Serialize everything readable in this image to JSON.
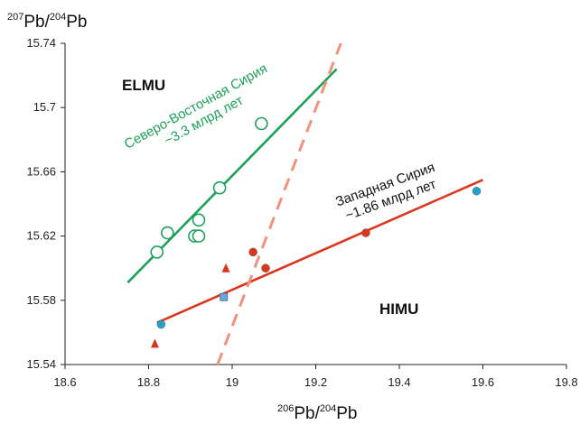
{
  "chart_data": {
    "type": "scatter",
    "title": "",
    "xlabel": {
      "sup1": "206",
      "base1": "Pb/",
      "sup2": "204",
      "base2": "Pb"
    },
    "ylabel": {
      "sup1": "207",
      "base1": "Pb/",
      "sup2": "204",
      "base2": "Pb"
    },
    "xlim": [
      18.6,
      19.8
    ],
    "ylim": [
      15.54,
      15.74
    ],
    "xticks": [
      "18.6",
      "18.8",
      "19",
      "19.2",
      "19.4",
      "19.6",
      "19.8"
    ],
    "yticks": [
      "15.54",
      "15.58",
      "15.62",
      "15.66",
      "15.7",
      "15.74"
    ],
    "grid": false,
    "colors": {
      "green": "#1ea05a",
      "red": "#d9381e",
      "dashed": "#f0937a",
      "blue": "#23a3c9",
      "blue_square": "#6fa8d8"
    },
    "series": [
      {
        "marker": "open-circle",
        "color": "#1ea05a",
        "points": [
          [
            18.82,
            15.61
          ],
          [
            18.845,
            15.622
          ],
          [
            18.91,
            15.62
          ],
          [
            18.92,
            15.62
          ],
          [
            18.92,
            15.63
          ],
          [
            18.97,
            15.65
          ],
          [
            19.07,
            15.69
          ]
        ]
      },
      {
        "marker": "red-circle",
        "color": "#d9381e",
        "points": [
          [
            19.05,
            15.61
          ],
          [
            19.08,
            15.6
          ],
          [
            19.32,
            15.622
          ]
        ]
      },
      {
        "marker": "red-triangle",
        "color": "#d9381e",
        "points": [
          [
            18.815,
            15.553
          ],
          [
            18.985,
            15.6
          ]
        ]
      },
      {
        "marker": "blue-circle",
        "color": "#23a3c9",
        "points": [
          [
            18.83,
            15.565
          ],
          [
            19.585,
            15.648
          ]
        ]
      },
      {
        "marker": "blue-square",
        "color": "#6fa8d8",
        "points": [
          [
            18.98,
            15.582
          ]
        ]
      }
    ],
    "lines": [
      {
        "style": "solid",
        "color": "#1ea05a",
        "from": [
          18.75,
          15.591
        ],
        "to": [
          19.25,
          15.724
        ]
      },
      {
        "style": "solid",
        "color": "#d9381e",
        "from": [
          18.82,
          15.566
        ],
        "to": [
          19.6,
          15.655
        ]
      },
      {
        "style": "dashed",
        "color": "#f0937a",
        "from": [
          18.965,
          15.54
        ],
        "to": [
          19.26,
          15.74
        ]
      }
    ],
    "annotations": {
      "elmu": "ELMU",
      "himu": "HIMU",
      "ne_syria_line1": "Северо-Восточная Сирия",
      "ne_syria_line2": "~3.3 млрд лет",
      "w_syria_line1": "Западная Сирия",
      "w_syria_line2": "~1.86 млрд лет"
    }
  }
}
